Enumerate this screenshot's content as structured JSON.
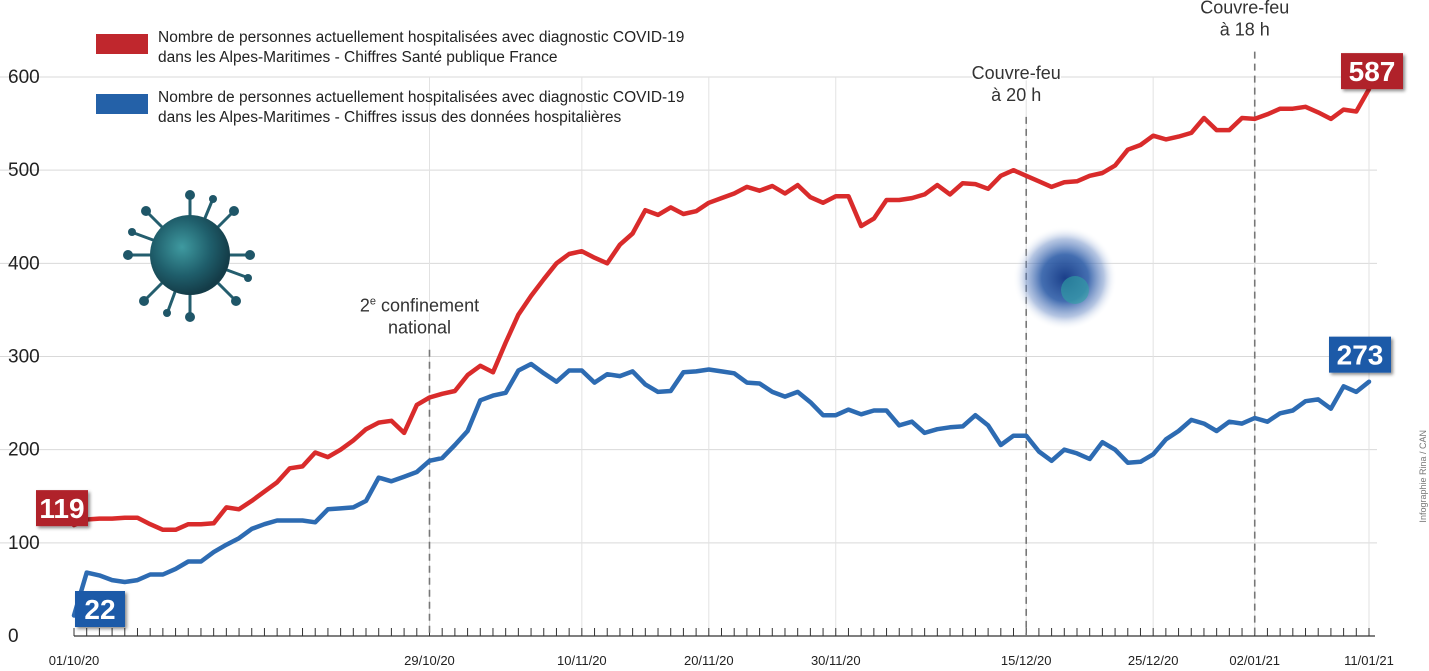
{
  "chart_data": {
    "type": "line",
    "legend": [
      {
        "series": "sante_publique_france",
        "line1": "Nombre de personnes actuellement hospitalisées avec diagnostic COVID-19",
        "line2": "dans les Alpes-Maritimes - Chiffres Santé publique France"
      },
      {
        "series": "donnees_hospitalieres",
        "line1": "Nombre de personnes actuellement hospitalisées avec diagnostic COVID-19",
        "line2": "dans les Alpes-Maritimes - Chiffres issus des données hospitalières"
      }
    ],
    "ylim": [
      0,
      600
    ],
    "yticks": [
      0,
      100,
      200,
      300,
      400,
      500,
      600
    ],
    "x_range_days": [
      0,
      102
    ],
    "x_tick_labels": [
      {
        "day": 0,
        "label": "01/10/20"
      },
      {
        "day": 28,
        "label": "29/10/20"
      },
      {
        "day": 40,
        "label": "10/11/20"
      },
      {
        "day": 50,
        "label": "20/11/20"
      },
      {
        "day": 60,
        "label": "30/11/20"
      },
      {
        "day": 75,
        "label": "15/12/20"
      },
      {
        "day": 85,
        "label": "25/12/20"
      },
      {
        "day": 93,
        "label": "02/01/21"
      },
      {
        "day": 102,
        "label": "11/01/21"
      }
    ],
    "annotations": [
      {
        "day": 28,
        "line1": "2e confinement",
        "line2": "national",
        "text_y_value": 318
      },
      {
        "day": 75,
        "line1": "Couvre-feu",
        "line2": "à 20 h",
        "text_y_value": 568
      },
      {
        "day": 93,
        "line1": "Couvre-feu",
        "line2": "à 18 h",
        "text_y_value": 638
      }
    ],
    "series": [
      {
        "id": "sante_publique_france",
        "color": "#d92b2b",
        "badge_color": "#b0232a",
        "start_label": "119",
        "end_label": "587",
        "points": [
          [
            0,
            119
          ],
          [
            1,
            125
          ],
          [
            2,
            126
          ],
          [
            3,
            126
          ],
          [
            4,
            127
          ],
          [
            5,
            127
          ],
          [
            6,
            120
          ],
          [
            7,
            114
          ],
          [
            8,
            114
          ],
          [
            9,
            120
          ],
          [
            10,
            120
          ],
          [
            11,
            121
          ],
          [
            12,
            138
          ],
          [
            13,
            136
          ],
          [
            14,
            145
          ],
          [
            15,
            155
          ],
          [
            16,
            165
          ],
          [
            17,
            180
          ],
          [
            18,
            182
          ],
          [
            19,
            197
          ],
          [
            20,
            192
          ],
          [
            21,
            200
          ],
          [
            22,
            210
          ],
          [
            23,
            222
          ],
          [
            24,
            229
          ],
          [
            25,
            231
          ],
          [
            26,
            218
          ],
          [
            27,
            248
          ],
          [
            28,
            256
          ],
          [
            29,
            260
          ],
          [
            30,
            263
          ],
          [
            31,
            280
          ],
          [
            32,
            290
          ],
          [
            33,
            283
          ],
          [
            34,
            315
          ],
          [
            35,
            345
          ],
          [
            36,
            365
          ],
          [
            37,
            383
          ],
          [
            38,
            400
          ],
          [
            39,
            410
          ],
          [
            40,
            413
          ],
          [
            41,
            406
          ],
          [
            42,
            400
          ],
          [
            43,
            420
          ],
          [
            44,
            432
          ],
          [
            45,
            457
          ],
          [
            46,
            452
          ],
          [
            47,
            460
          ],
          [
            48,
            453
          ],
          [
            49,
            456
          ],
          [
            50,
            465
          ],
          [
            51,
            470
          ],
          [
            52,
            475
          ],
          [
            53,
            482
          ],
          [
            54,
            478
          ],
          [
            55,
            483
          ],
          [
            56,
            475
          ],
          [
            57,
            484
          ],
          [
            58,
            471
          ],
          [
            59,
            465
          ],
          [
            60,
            472
          ],
          [
            61,
            472
          ],
          [
            62,
            440
          ],
          [
            63,
            448
          ],
          [
            64,
            468
          ],
          [
            65,
            468
          ],
          [
            66,
            470
          ],
          [
            67,
            474
          ],
          [
            68,
            484
          ],
          [
            69,
            474
          ],
          [
            70,
            486
          ],
          [
            71,
            485
          ],
          [
            72,
            480
          ],
          [
            73,
            494
          ],
          [
            74,
            500
          ],
          [
            75,
            494
          ],
          [
            76,
            488
          ],
          [
            77,
            482
          ],
          [
            78,
            487
          ],
          [
            79,
            488
          ],
          [
            80,
            494
          ],
          [
            81,
            497
          ],
          [
            82,
            505
          ],
          [
            83,
            522
          ],
          [
            84,
            527
          ],
          [
            85,
            537
          ],
          [
            86,
            533
          ],
          [
            87,
            536
          ],
          [
            88,
            540
          ],
          [
            89,
            556
          ],
          [
            90,
            543
          ],
          [
            91,
            543
          ],
          [
            92,
            556
          ],
          [
            93,
            555
          ],
          [
            94,
            560
          ],
          [
            95,
            566
          ],
          [
            96,
            566
          ],
          [
            97,
            568
          ],
          [
            98,
            562
          ],
          [
            99,
            555
          ],
          [
            100,
            565
          ],
          [
            101,
            563
          ],
          [
            102,
            587
          ]
        ]
      },
      {
        "id": "donnees_hospitalieres",
        "color": "#2d6bb2",
        "badge_color": "#1f5aa8",
        "start_label": "22",
        "end_label": "273",
        "points": [
          [
            0,
            22
          ],
          [
            1,
            68
          ],
          [
            2,
            65
          ],
          [
            3,
            60
          ],
          [
            4,
            58
          ],
          [
            5,
            60
          ],
          [
            6,
            66
          ],
          [
            7,
            66
          ],
          [
            8,
            72
          ],
          [
            9,
            80
          ],
          [
            10,
            80
          ],
          [
            11,
            90
          ],
          [
            12,
            98
          ],
          [
            13,
            105
          ],
          [
            14,
            115
          ],
          [
            15,
            120
          ],
          [
            16,
            124
          ],
          [
            17,
            124
          ],
          [
            18,
            124
          ],
          [
            19,
            122
          ],
          [
            20,
            136
          ],
          [
            21,
            137
          ],
          [
            22,
            138
          ],
          [
            23,
            145
          ],
          [
            24,
            170
          ],
          [
            25,
            166
          ],
          [
            26,
            171
          ],
          [
            27,
            176
          ],
          [
            28,
            188
          ],
          [
            29,
            191
          ],
          [
            30,
            205
          ],
          [
            31,
            220
          ],
          [
            32,
            253
          ],
          [
            33,
            258
          ],
          [
            34,
            261
          ],
          [
            35,
            285
          ],
          [
            36,
            292
          ],
          [
            37,
            282
          ],
          [
            38,
            273
          ],
          [
            39,
            285
          ],
          [
            40,
            285
          ],
          [
            41,
            272
          ],
          [
            42,
            281
          ],
          [
            43,
            279
          ],
          [
            44,
            284
          ],
          [
            45,
            270
          ],
          [
            46,
            262
          ],
          [
            47,
            263
          ],
          [
            48,
            283
          ],
          [
            49,
            284
          ],
          [
            50,
            286
          ],
          [
            51,
            284
          ],
          [
            52,
            282
          ],
          [
            53,
            272
          ],
          [
            54,
            271
          ],
          [
            55,
            262
          ],
          [
            56,
            257
          ],
          [
            57,
            262
          ],
          [
            58,
            251
          ],
          [
            59,
            237
          ],
          [
            60,
            237
          ],
          [
            61,
            243
          ],
          [
            62,
            238
          ],
          [
            63,
            242
          ],
          [
            64,
            242
          ],
          [
            65,
            226
          ],
          [
            66,
            230
          ],
          [
            67,
            218
          ],
          [
            68,
            222
          ],
          [
            69,
            224
          ],
          [
            70,
            225
          ],
          [
            71,
            237
          ],
          [
            72,
            226
          ],
          [
            73,
            205
          ],
          [
            74,
            215
          ],
          [
            75,
            215
          ],
          [
            76,
            198
          ],
          [
            77,
            188
          ],
          [
            78,
            200
          ],
          [
            79,
            196
          ],
          [
            80,
            190
          ],
          [
            81,
            208
          ],
          [
            82,
            200
          ],
          [
            83,
            186
          ],
          [
            84,
            187
          ],
          [
            85,
            195
          ],
          [
            86,
            211
          ],
          [
            87,
            220
          ],
          [
            88,
            232
          ],
          [
            89,
            228
          ],
          [
            90,
            220
          ],
          [
            91,
            230
          ],
          [
            92,
            228
          ],
          [
            93,
            234
          ],
          [
            94,
            230
          ],
          [
            95,
            239
          ],
          [
            96,
            242
          ],
          [
            97,
            252
          ],
          [
            98,
            254
          ],
          [
            99,
            244
          ],
          [
            100,
            268
          ],
          [
            101,
            262
          ],
          [
            102,
            273
          ]
        ]
      }
    ]
  },
  "credit": "Infographie Rina / CAN"
}
